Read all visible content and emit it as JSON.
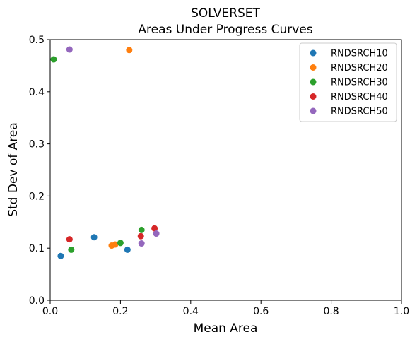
{
  "chart_data": {
    "type": "scatter",
    "title": "SOLVERSET",
    "subtitle": "Areas Under Progress Curves",
    "xlabel": "Mean Area",
    "ylabel": "Std Dev of Area",
    "xlim": [
      0,
      1
    ],
    "ylim": [
      0,
      0.5
    ],
    "xticks": [
      "0.0",
      "0.2",
      "0.4",
      "0.6",
      "0.8",
      "1.0"
    ],
    "yticks": [
      "0.0",
      "0.1",
      "0.2",
      "0.3",
      "0.4",
      "0.5"
    ],
    "grid": false,
    "legend_position": "top-right",
    "series": [
      {
        "name": "RNDSRCH10",
        "color": "#1f77b4",
        "points": [
          [
            0.03,
            0.085
          ],
          [
            0.125,
            0.121
          ],
          [
            0.22,
            0.097
          ]
        ]
      },
      {
        "name": "RNDSRCH20",
        "color": "#ff7f0e",
        "points": [
          [
            0.225,
            0.48
          ],
          [
            0.175,
            0.105
          ],
          [
            0.185,
            0.107
          ]
        ]
      },
      {
        "name": "RNDSRCH30",
        "color": "#2ca02c",
        "points": [
          [
            0.01,
            0.462
          ],
          [
            0.06,
            0.097
          ],
          [
            0.2,
            0.11
          ],
          [
            0.26,
            0.135
          ]
        ]
      },
      {
        "name": "RNDSRCH40",
        "color": "#d62728",
        "points": [
          [
            0.055,
            0.117
          ],
          [
            0.258,
            0.123
          ],
          [
            0.297,
            0.138
          ]
        ]
      },
      {
        "name": "RNDSRCH50",
        "color": "#9467bd",
        "points": [
          [
            0.055,
            0.481
          ],
          [
            0.26,
            0.109
          ],
          [
            0.302,
            0.128
          ]
        ]
      }
    ]
  }
}
